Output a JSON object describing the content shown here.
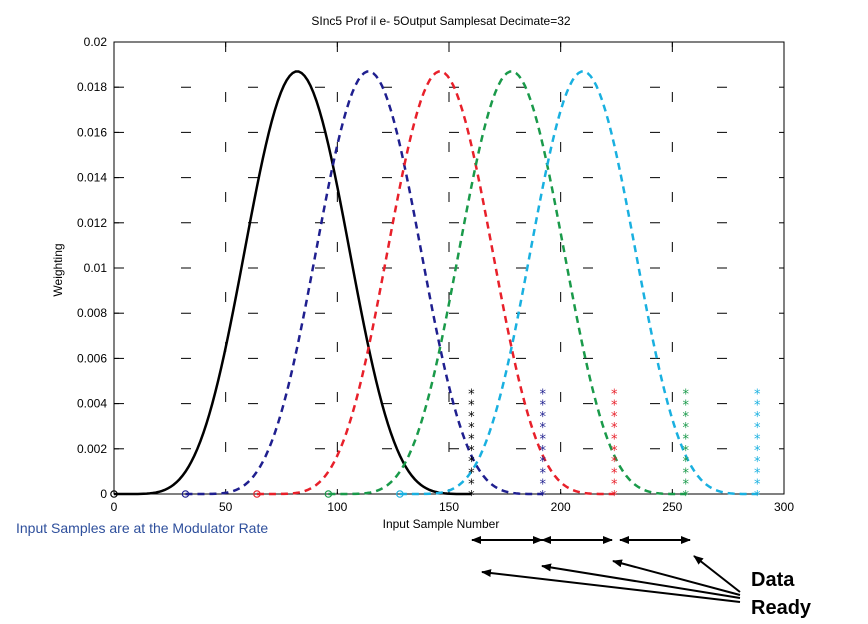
{
  "chart_data": {
    "type": "line",
    "title": "SInc5 Prof il e- 5Output Samplesat Decimate=32",
    "xlabel": "Input Sample Number",
    "ylabel": "Weighting",
    "xlim": [
      0,
      300
    ],
    "ylim": [
      0,
      0.02
    ],
    "xticks": [
      0,
      50,
      100,
      150,
      200,
      250,
      300
    ],
    "yticks": [
      0,
      0.002,
      0.004,
      0.006,
      0.008,
      0.01,
      0.012,
      0.014,
      0.016,
      0.018,
      0.02
    ],
    "xtick_labels": [
      "0",
      "50",
      "100",
      "150",
      "200",
      "250",
      "300"
    ],
    "ytick_labels": [
      "0",
      "0.002",
      "0.004",
      "0.006",
      "0.008",
      "0.01",
      "0.012",
      "0.014",
      "0.016",
      "0.018",
      "0.02"
    ],
    "grid": true,
    "series": [
      {
        "style": "solid",
        "color": "#000000",
        "start": 0,
        "end": 160,
        "peak_x": 82,
        "peak": 0.0187
      },
      {
        "style": "dashed",
        "color": "#1f1f8f",
        "start": 32,
        "end": 192,
        "peak_x": 114,
        "peak": 0.0187
      },
      {
        "style": "dashed",
        "color": "#e8202a",
        "start": 64,
        "end": 224,
        "peak_x": 146,
        "peak": 0.0187
      },
      {
        "style": "dashed",
        "color": "#1a9a4a",
        "start": 96,
        "end": 256,
        "peak_x": 178,
        "peak": 0.0187
      },
      {
        "style": "dashed",
        "color": "#19b0e0",
        "start": 128,
        "end": 288,
        "peak_x": 210,
        "peak": 0.0187
      }
    ],
    "start_markers": [
      {
        "x": 0,
        "y": 0,
        "color": "#000000"
      },
      {
        "x": 32,
        "y": 0,
        "color": "#1f1f8f"
      },
      {
        "x": 64,
        "y": 0,
        "color": "#e8202a"
      },
      {
        "x": 96,
        "y": 0,
        "color": "#1a9a4a"
      },
      {
        "x": 128,
        "y": 0,
        "color": "#19b0e0"
      }
    ],
    "output_markers": [
      {
        "x": 160,
        "color": "#000000",
        "values": [
          0,
          0.0005,
          0.001,
          0.0015,
          0.002,
          0.0025,
          0.003,
          0.0035,
          0.004,
          0.0045
        ]
      },
      {
        "x": 192,
        "color": "#1f1f8f",
        "values": [
          0,
          0.0005,
          0.001,
          0.0015,
          0.002,
          0.0025,
          0.003,
          0.0035,
          0.004,
          0.0045
        ]
      },
      {
        "x": 224,
        "color": "#e8202a",
        "values": [
          0,
          0.0005,
          0.001,
          0.0015,
          0.002,
          0.0025,
          0.003,
          0.0035,
          0.004,
          0.0045
        ]
      },
      {
        "x": 256,
        "color": "#1a9a4a",
        "values": [
          0,
          0.0005,
          0.001,
          0.0015,
          0.002,
          0.0025,
          0.003,
          0.0035,
          0.004,
          0.0045
        ]
      },
      {
        "x": 288,
        "color": "#19b0e0",
        "values": [
          0,
          0.0005,
          0.001,
          0.0015,
          0.002,
          0.0025,
          0.003,
          0.0035,
          0.004,
          0.0045
        ]
      }
    ]
  },
  "annotations": {
    "modulator_note": "Input Samples are at the Modulator Rate",
    "data_ready_line1": "Data",
    "data_ready_line2": "Ready"
  }
}
